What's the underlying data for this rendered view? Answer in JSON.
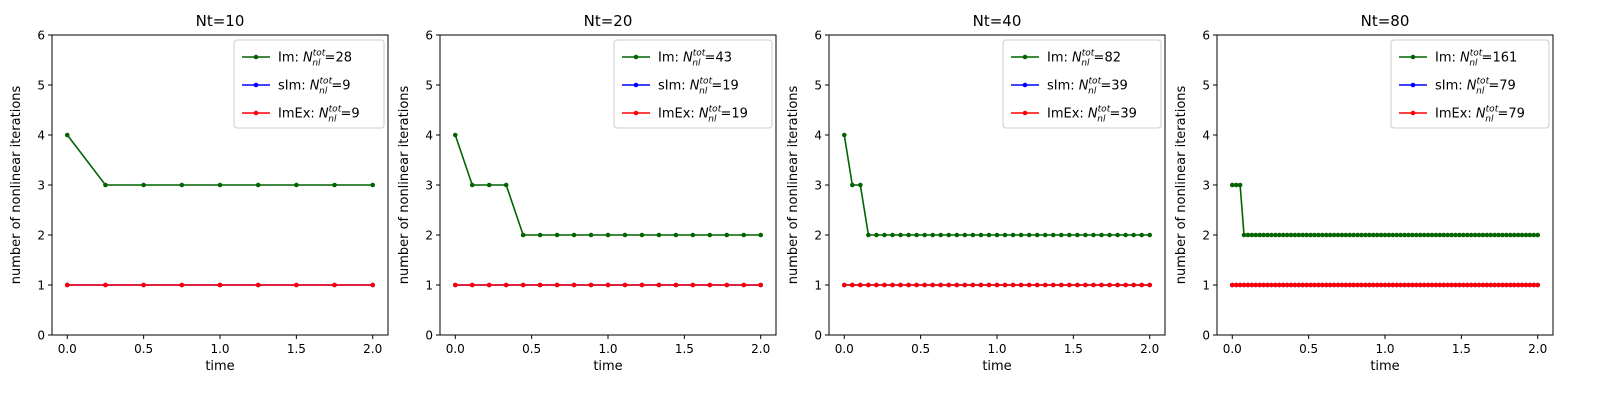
{
  "chart_data": [
    {
      "type": "line",
      "title": "Nt=10",
      "xlabel": "time",
      "ylabel": "number of nonlinear iterations",
      "xlim": [
        -0.1,
        2.1
      ],
      "ylim": [
        0,
        6
      ],
      "xticks": [
        0.0,
        0.5,
        1.0,
        1.5,
        2.0
      ],
      "xtick_labels": [
        "0.0",
        "0.5",
        "1.0",
        "1.5",
        "2.0"
      ],
      "yticks": [
        0,
        1,
        2,
        3,
        4,
        5,
        6
      ],
      "ytick_labels": [
        "0",
        "1",
        "2",
        "3",
        "4",
        "5",
        "6"
      ],
      "nt": 10,
      "legend_position": "top-right",
      "series": [
        {
          "name": "Im",
          "color": "#006400",
          "total": "28",
          "values": [
            4,
            3,
            3,
            3,
            3,
            3,
            3,
            3,
            3
          ]
        },
        {
          "name": "sIm",
          "color": "#0000ff",
          "total": "9",
          "values": [
            1,
            1,
            1,
            1,
            1,
            1,
            1,
            1,
            1
          ]
        },
        {
          "name": "ImEx",
          "color": "#ff0000",
          "total": "9",
          "values": [
            1,
            1,
            1,
            1,
            1,
            1,
            1,
            1,
            1
          ]
        }
      ]
    },
    {
      "type": "line",
      "title": "Nt=20",
      "xlabel": "time",
      "ylabel": "number of nonlinear iterations",
      "xlim": [
        -0.1,
        2.1
      ],
      "ylim": [
        0,
        6
      ],
      "xticks": [
        0.0,
        0.5,
        1.0,
        1.5,
        2.0
      ],
      "xtick_labels": [
        "0.0",
        "0.5",
        "1.0",
        "1.5",
        "2.0"
      ],
      "yticks": [
        0,
        1,
        2,
        3,
        4,
        5,
        6
      ],
      "ytick_labels": [
        "0",
        "1",
        "2",
        "3",
        "4",
        "5",
        "6"
      ],
      "nt": 20,
      "legend_position": "top-right",
      "series": [
        {
          "name": "Im",
          "color": "#006400",
          "total": "43",
          "values": [
            4,
            3,
            3,
            3,
            2,
            2,
            2,
            2,
            2,
            2,
            2,
            2,
            2,
            2,
            2,
            2,
            2,
            2,
            2
          ]
        },
        {
          "name": "sIm",
          "color": "#0000ff",
          "total": "19",
          "values": [
            1,
            1,
            1,
            1,
            1,
            1,
            1,
            1,
            1,
            1,
            1,
            1,
            1,
            1,
            1,
            1,
            1,
            1,
            1
          ]
        },
        {
          "name": "ImEx",
          "color": "#ff0000",
          "total": "19",
          "values": [
            1,
            1,
            1,
            1,
            1,
            1,
            1,
            1,
            1,
            1,
            1,
            1,
            1,
            1,
            1,
            1,
            1,
            1,
            1
          ]
        }
      ]
    },
    {
      "type": "line",
      "title": "Nt=40",
      "xlabel": "time",
      "ylabel": "number of nonlinear iterations",
      "xlim": [
        -0.1,
        2.1
      ],
      "ylim": [
        0,
        6
      ],
      "xticks": [
        0.0,
        0.5,
        1.0,
        1.5,
        2.0
      ],
      "xtick_labels": [
        "0.0",
        "0.5",
        "1.0",
        "1.5",
        "2.0"
      ],
      "yticks": [
        0,
        1,
        2,
        3,
        4,
        5,
        6
      ],
      "ytick_labels": [
        "0",
        "1",
        "2",
        "3",
        "4",
        "5",
        "6"
      ],
      "nt": 40,
      "legend_position": "top-right",
      "series": [
        {
          "name": "Im",
          "color": "#006400",
          "total": "82",
          "values": [
            4,
            3,
            3,
            2,
            2,
            2,
            2,
            2,
            2,
            2,
            2,
            2,
            2,
            2,
            2,
            2,
            2,
            2,
            2,
            2,
            2,
            2,
            2,
            2,
            2,
            2,
            2,
            2,
            2,
            2,
            2,
            2,
            2,
            2,
            2,
            2,
            2,
            2,
            2
          ]
        },
        {
          "name": "sIm",
          "color": "#0000ff",
          "total": "39",
          "values": [
            1,
            1,
            1,
            1,
            1,
            1,
            1,
            1,
            1,
            1,
            1,
            1,
            1,
            1,
            1,
            1,
            1,
            1,
            1,
            1,
            1,
            1,
            1,
            1,
            1,
            1,
            1,
            1,
            1,
            1,
            1,
            1,
            1,
            1,
            1,
            1,
            1,
            1,
            1
          ]
        },
        {
          "name": "ImEx",
          "color": "#ff0000",
          "total": "39",
          "values": [
            1,
            1,
            1,
            1,
            1,
            1,
            1,
            1,
            1,
            1,
            1,
            1,
            1,
            1,
            1,
            1,
            1,
            1,
            1,
            1,
            1,
            1,
            1,
            1,
            1,
            1,
            1,
            1,
            1,
            1,
            1,
            1,
            1,
            1,
            1,
            1,
            1,
            1,
            1
          ]
        }
      ]
    },
    {
      "type": "line",
      "title": "Nt=80",
      "xlabel": "time",
      "ylabel": "number of nonlinear iterations",
      "xlim": [
        -0.1,
        2.1
      ],
      "ylim": [
        0,
        6
      ],
      "xticks": [
        0.0,
        0.5,
        1.0,
        1.5,
        2.0
      ],
      "xtick_labels": [
        "0.0",
        "0.5",
        "1.0",
        "1.5",
        "2.0"
      ],
      "yticks": [
        0,
        1,
        2,
        3,
        4,
        5,
        6
      ],
      "ytick_labels": [
        "0",
        "1",
        "2",
        "3",
        "4",
        "5",
        "6"
      ],
      "nt": 80,
      "legend_position": "top-right",
      "series": [
        {
          "name": "Im",
          "color": "#006400",
          "total": "161",
          "values": [
            3,
            3,
            3,
            2,
            2,
            2,
            2,
            2,
            2,
            2,
            2,
            2,
            2,
            2,
            2,
            2,
            2,
            2,
            2,
            2,
            2,
            2,
            2,
            2,
            2,
            2,
            2,
            2,
            2,
            2,
            2,
            2,
            2,
            2,
            2,
            2,
            2,
            2,
            2,
            2,
            2,
            2,
            2,
            2,
            2,
            2,
            2,
            2,
            2,
            2,
            2,
            2,
            2,
            2,
            2,
            2,
            2,
            2,
            2,
            2,
            2,
            2,
            2,
            2,
            2,
            2,
            2,
            2,
            2,
            2,
            2,
            2,
            2,
            2,
            2,
            2,
            2,
            2,
            2
          ]
        },
        {
          "name": "sIm",
          "color": "#0000ff",
          "total": "79",
          "values": [
            1,
            1,
            1,
            1,
            1,
            1,
            1,
            1,
            1,
            1,
            1,
            1,
            1,
            1,
            1,
            1,
            1,
            1,
            1,
            1,
            1,
            1,
            1,
            1,
            1,
            1,
            1,
            1,
            1,
            1,
            1,
            1,
            1,
            1,
            1,
            1,
            1,
            1,
            1,
            1,
            1,
            1,
            1,
            1,
            1,
            1,
            1,
            1,
            1,
            1,
            1,
            1,
            1,
            1,
            1,
            1,
            1,
            1,
            1,
            1,
            1,
            1,
            1,
            1,
            1,
            1,
            1,
            1,
            1,
            1,
            1,
            1,
            1,
            1,
            1,
            1,
            1,
            1,
            1
          ]
        },
        {
          "name": "ImEx",
          "color": "#ff0000",
          "total": "79",
          "values": [
            1,
            1,
            1,
            1,
            1,
            1,
            1,
            1,
            1,
            1,
            1,
            1,
            1,
            1,
            1,
            1,
            1,
            1,
            1,
            1,
            1,
            1,
            1,
            1,
            1,
            1,
            1,
            1,
            1,
            1,
            1,
            1,
            1,
            1,
            1,
            1,
            1,
            1,
            1,
            1,
            1,
            1,
            1,
            1,
            1,
            1,
            1,
            1,
            1,
            1,
            1,
            1,
            1,
            1,
            1,
            1,
            1,
            1,
            1,
            1,
            1,
            1,
            1,
            1,
            1,
            1,
            1,
            1,
            1,
            1,
            1,
            1,
            1,
            1,
            1,
            1,
            1,
            1,
            1
          ]
        }
      ]
    }
  ]
}
